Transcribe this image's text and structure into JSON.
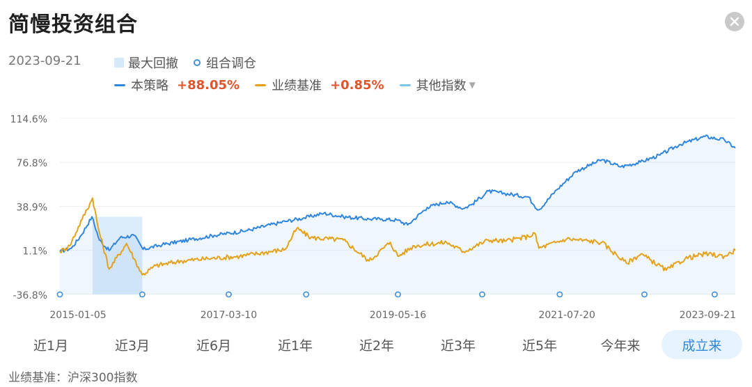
{
  "header": {
    "title": "简慢投资组合"
  },
  "legend": {
    "date": "2023-09-21",
    "max_drawdown_label": "最大回撤",
    "rebalance_label": "组合调仓",
    "strategy_label": "本策略",
    "strategy_return": "+88.05%",
    "benchmark_label": "业绩基准",
    "benchmark_return": "+0.85%",
    "other_index_label": "其他指数"
  },
  "colors": {
    "strategy": "#2f86dc",
    "benchmark": "#e3a21a",
    "other_index": "#7cc8ec",
    "drawdown": "#d6e9fa",
    "return": "#e0542b"
  },
  "tabs": [
    "近1月",
    "近3月",
    "近6月",
    "近1年",
    "近2年",
    "近3年",
    "近5年",
    "今年来",
    "成立来"
  ],
  "active_tab": "成立来",
  "footer": {
    "text": "业绩基准：沪深300指数"
  },
  "chart_data": {
    "type": "line",
    "y_ticks": [
      "114.6%",
      "76.8%",
      "38.9%",
      "1.1%",
      "-36.8%"
    ],
    "ylim": [
      -36.8,
      114.6
    ],
    "x_ticks": [
      "2015-01-05",
      "2017-03-10",
      "2019-05-16",
      "2021-07-20",
      "2023-09-21"
    ],
    "xlim": [
      "2015-01-05",
      "2023-09-21"
    ],
    "series": [
      {
        "name": "本策略",
        "color": "#2f86dc",
        "area": true,
        "points": [
          [
            "2015-01-05",
            0
          ],
          [
            "2015-03-01",
            3
          ],
          [
            "2015-04-15",
            14
          ],
          [
            "2015-06-05",
            30
          ],
          [
            "2015-07-10",
            10
          ],
          [
            "2015-08-25",
            1
          ],
          [
            "2015-10-15",
            12
          ],
          [
            "2015-12-20",
            14
          ],
          [
            "2016-02-01",
            2
          ],
          [
            "2016-05-01",
            6
          ],
          [
            "2016-09-01",
            10
          ],
          [
            "2017-01-01",
            14
          ],
          [
            "2017-06-01",
            18
          ],
          [
            "2017-12-01",
            26
          ],
          [
            "2018-03-01",
            29
          ],
          [
            "2018-06-01",
            33
          ],
          [
            "2018-09-01",
            30
          ],
          [
            "2018-12-31",
            28
          ],
          [
            "2019-03-01",
            28
          ],
          [
            "2019-05-16",
            27
          ],
          [
            "2019-07-01",
            23
          ],
          [
            "2019-10-01",
            38
          ],
          [
            "2020-01-01",
            43
          ],
          [
            "2020-03-20",
            37
          ],
          [
            "2020-05-01",
            41
          ],
          [
            "2020-07-15",
            52
          ],
          [
            "2020-10-01",
            50
          ],
          [
            "2021-01-20",
            47
          ],
          [
            "2021-02-15",
            40
          ],
          [
            "2021-03-10",
            36
          ],
          [
            "2021-06-01",
            53
          ],
          [
            "2021-09-01",
            69
          ],
          [
            "2021-12-31",
            79
          ],
          [
            "2022-04-01",
            73
          ],
          [
            "2022-07-01",
            77
          ],
          [
            "2022-10-01",
            83
          ],
          [
            "2023-01-01",
            92
          ],
          [
            "2023-05-01",
            99
          ],
          [
            "2023-08-01",
            96
          ],
          [
            "2023-09-21",
            89
          ]
        ]
      },
      {
        "name": "业绩基准",
        "color": "#e3a21a",
        "area": false,
        "points": [
          [
            "2015-01-05",
            0
          ],
          [
            "2015-02-20",
            5
          ],
          [
            "2015-04-20",
            28
          ],
          [
            "2015-06-08",
            46
          ],
          [
            "2015-07-05",
            20
          ],
          [
            "2015-08-25",
            -15
          ],
          [
            "2015-11-15",
            7
          ],
          [
            "2016-01-28",
            -20
          ],
          [
            "2016-04-01",
            -12
          ],
          [
            "2016-08-01",
            -8
          ],
          [
            "2016-12-01",
            -6
          ],
          [
            "2017-05-01",
            -4
          ],
          [
            "2017-12-01",
            2
          ],
          [
            "2018-01-25",
            20
          ],
          [
            "2018-04-01",
            12
          ],
          [
            "2018-09-01",
            10
          ],
          [
            "2018-12-31",
            -8
          ],
          [
            "2019-04-10",
            8
          ],
          [
            "2019-05-16",
            -4
          ],
          [
            "2019-08-01",
            5
          ],
          [
            "2019-12-31",
            8
          ],
          [
            "2020-03-20",
            0
          ],
          [
            "2020-07-15",
            10
          ],
          [
            "2020-10-01",
            9
          ],
          [
            "2021-01-20",
            13
          ],
          [
            "2021-02-18",
            16
          ],
          [
            "2021-03-10",
            3
          ],
          [
            "2021-07-20",
            11
          ],
          [
            "2021-12-31",
            8
          ],
          [
            "2022-04-26",
            -10
          ],
          [
            "2022-07-04",
            -2
          ],
          [
            "2022-10-31",
            -16
          ],
          [
            "2023-01-28",
            -6
          ],
          [
            "2023-05-01",
            -2
          ],
          [
            "2023-08-01",
            -4
          ],
          [
            "2023-09-21",
            1
          ]
        ]
      }
    ],
    "max_drawdown": {
      "start": "2015-06-08",
      "end": "2016-01-28"
    },
    "rebalances": [
      "2015-01-05",
      "2016-01-28",
      "2017-03-10",
      "2018-03-10",
      "2019-05-16",
      "2020-06-16",
      "2021-06-16",
      "2022-07-20",
      "2023-06-16"
    ]
  }
}
